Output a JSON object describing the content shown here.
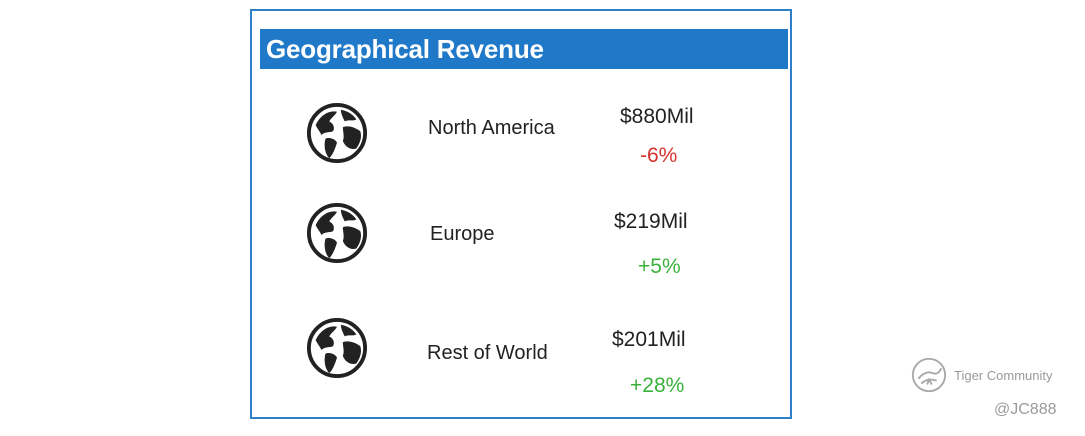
{
  "panel": {
    "title": "Geographical Revenue",
    "accent_color": "#1f78c8",
    "border_color": "#2d7fc6"
  },
  "regions": [
    {
      "name": "North America",
      "amount": "$880Mil",
      "change": "-6%",
      "trend": "negative",
      "icon": "globe-icon"
    },
    {
      "name": "Europe",
      "amount": "$219Mil",
      "change": "+5%",
      "trend": "positive",
      "icon": "globe-icon"
    },
    {
      "name": "Rest of World",
      "amount": "$201Mil",
      "change": "+28%",
      "trend": "positive",
      "icon": "globe-icon"
    }
  ],
  "colors": {
    "negative": "#d6322c",
    "positive": "#3ab13a"
  },
  "watermark": {
    "brand": "Tiger Community",
    "handle": "@JC888",
    "icon": "tiger-logo-icon"
  }
}
